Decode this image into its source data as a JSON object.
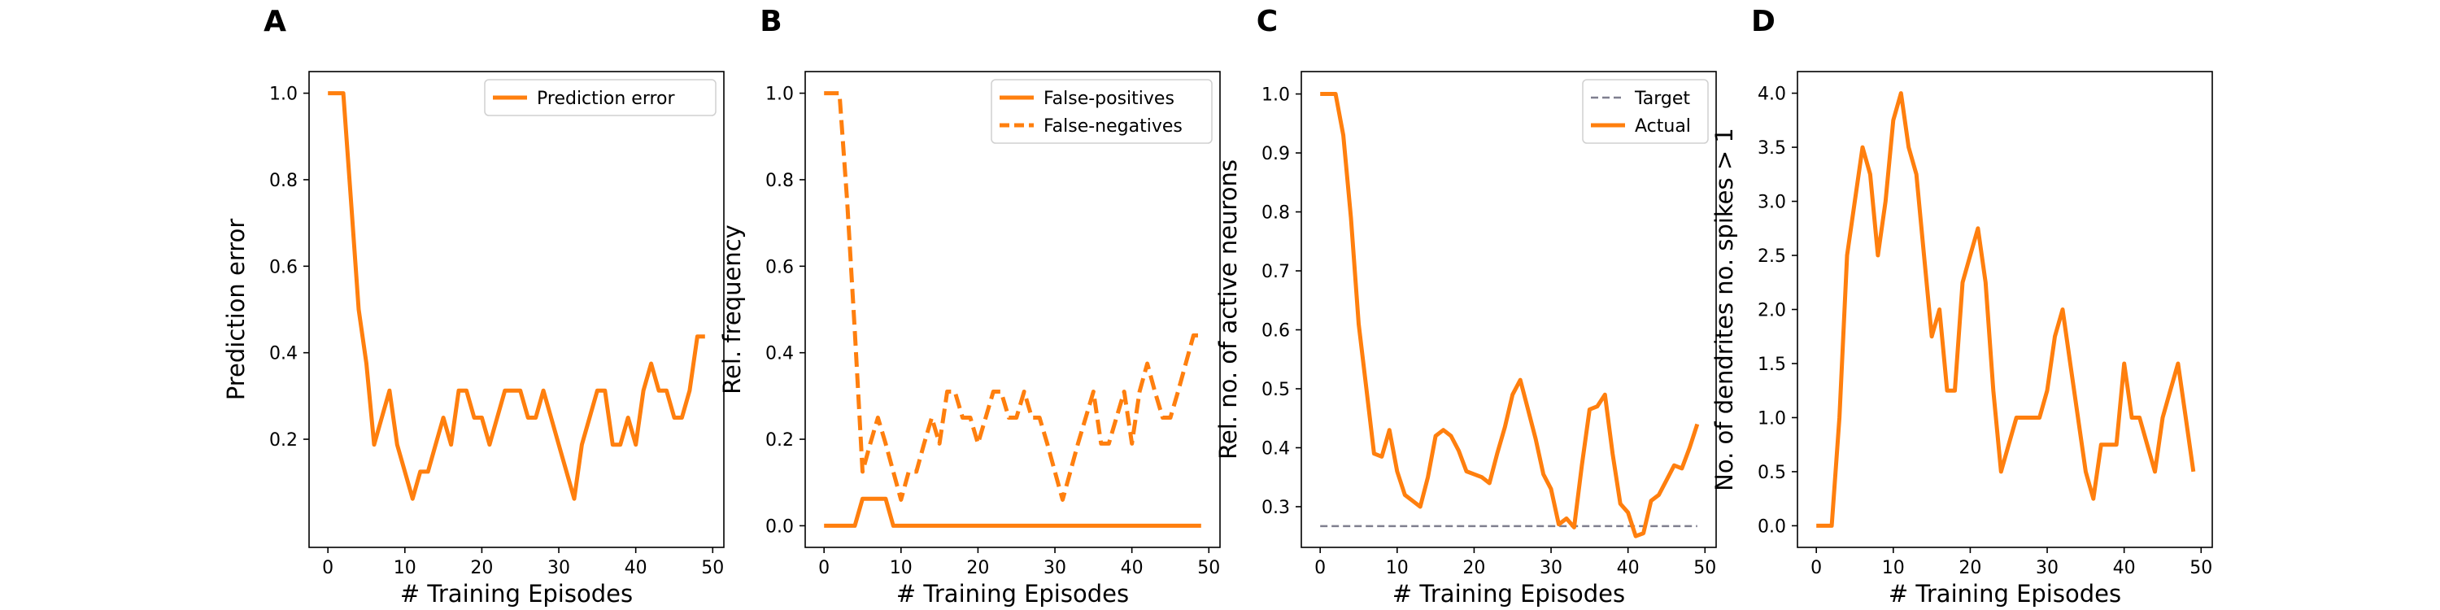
{
  "colors": {
    "orange": "#ff7f0e",
    "target_gray": "#7f7f8f",
    "axis": "#000000"
  },
  "chart_data": [
    {
      "panel": "A",
      "type": "line",
      "xlabel": "# Training Episodes",
      "ylabel": "Prediction error",
      "xlim": [
        -2.45,
        51.45
      ],
      "ylim": [
        -0.05,
        1.05
      ],
      "xticks": [
        0,
        10,
        20,
        30,
        40,
        50
      ],
      "xtick_labels": [
        "0",
        "10",
        "20",
        "30",
        "40",
        "50"
      ],
      "yticks": [
        0.2,
        0.4,
        0.6,
        0.8,
        1.0
      ],
      "ytick_labels": [
        "0.2",
        "0.4",
        "0.6",
        "0.8",
        "1.0"
      ],
      "legend": "top-right",
      "series": [
        {
          "name": "Prediction error",
          "style": "solid",
          "x": [
            0,
            1,
            2,
            3,
            4,
            5,
            6,
            7,
            8,
            9,
            10,
            11,
            12,
            13,
            14,
            15,
            16,
            17,
            18,
            19,
            20,
            21,
            22,
            23,
            24,
            25,
            26,
            27,
            28,
            29,
            30,
            31,
            32,
            33,
            34,
            35,
            36,
            37,
            38,
            39,
            40,
            41,
            42,
            43,
            44,
            45,
            46,
            47,
            48,
            49
          ],
          "y": [
            1.0,
            1.0,
            1.0,
            0.75,
            0.5,
            0.375,
            0.1875,
            0.25,
            0.3125,
            0.1875,
            0.125,
            0.0625,
            0.125,
            0.125,
            0.1875,
            0.25,
            0.1875,
            0.3125,
            0.3125,
            0.25,
            0.25,
            0.1875,
            0.25,
            0.3125,
            0.3125,
            0.3125,
            0.25,
            0.25,
            0.3125,
            0.25,
            0.1875,
            0.125,
            0.0625,
            0.1875,
            0.25,
            0.3125,
            0.3125,
            0.1875,
            0.1875,
            0.25,
            0.1875,
            0.3125,
            0.375,
            0.3125,
            0.3125,
            0.25,
            0.25,
            0.3125,
            0.4375,
            0.4375
          ]
        }
      ]
    },
    {
      "panel": "B",
      "type": "line",
      "xlabel": "# Training Episodes",
      "ylabel": "Rel. frequency",
      "xlim": [
        -2.45,
        51.45
      ],
      "ylim": [
        -0.05,
        1.05
      ],
      "xticks": [
        0,
        10,
        20,
        30,
        40,
        50
      ],
      "xtick_labels": [
        "0",
        "10",
        "20",
        "30",
        "40",
        "50"
      ],
      "yticks": [
        0.0,
        0.2,
        0.4,
        0.6,
        0.8,
        1.0
      ],
      "ytick_labels": [
        "0.0",
        "0.2",
        "0.4",
        "0.6",
        "0.8",
        "1.0"
      ],
      "legend": "top-right",
      "series": [
        {
          "name": "False-positives",
          "style": "solid",
          "x": [
            0,
            1,
            2,
            3,
            4,
            5,
            6,
            7,
            8,
            9,
            10,
            11,
            12,
            13,
            14,
            15,
            16,
            17,
            18,
            19,
            20,
            21,
            22,
            23,
            24,
            25,
            26,
            27,
            28,
            29,
            30,
            31,
            32,
            33,
            34,
            35,
            36,
            37,
            38,
            39,
            40,
            41,
            42,
            43,
            44,
            45,
            46,
            47,
            48,
            49
          ],
          "y": [
            0,
            0,
            0,
            0,
            0,
            0.0625,
            0.0625,
            0.0625,
            0.0625,
            0,
            0,
            0,
            0,
            0,
            0,
            0,
            0,
            0,
            0,
            0,
            0,
            0,
            0,
            0,
            0,
            0,
            0,
            0,
            0,
            0,
            0,
            0,
            0,
            0,
            0,
            0,
            0,
            0,
            0,
            0,
            0,
            0,
            0,
            0,
            0,
            0,
            0,
            0,
            0,
            0
          ]
        },
        {
          "name": "False-negatives",
          "style": "dashed",
          "x": [
            0,
            1,
            2,
            3,
            4,
            5,
            6,
            7,
            8,
            9,
            10,
            11,
            12,
            13,
            14,
            15,
            16,
            17,
            18,
            19,
            20,
            21,
            22,
            23,
            24,
            25,
            26,
            27,
            28,
            29,
            30,
            31,
            32,
            33,
            34,
            35,
            36,
            37,
            38,
            39,
            40,
            41,
            42,
            43,
            44,
            45,
            46,
            47,
            48,
            49
          ],
          "y": [
            1.0,
            1.0,
            1.0,
            0.75,
            0.45,
            0.125,
            0.19,
            0.25,
            0.19,
            0.125,
            0.06,
            0.125,
            0.125,
            0.19,
            0.25,
            0.19,
            0.31,
            0.31,
            0.25,
            0.25,
            0.19,
            0.25,
            0.31,
            0.31,
            0.25,
            0.25,
            0.31,
            0.25,
            0.25,
            0.19,
            0.125,
            0.06,
            0.125,
            0.19,
            0.25,
            0.31,
            0.19,
            0.19,
            0.25,
            0.31,
            0.19,
            0.31,
            0.375,
            0.31,
            0.25,
            0.25,
            0.31,
            0.375,
            0.44,
            0.44
          ]
        }
      ]
    },
    {
      "panel": "C",
      "type": "line",
      "xlabel": "# Training Episodes",
      "ylabel": "Rel. no. of active neurons",
      "xlim": [
        -2.45,
        51.45
      ],
      "ylim": [
        0.231,
        1.038
      ],
      "xticks": [
        0,
        10,
        20,
        30,
        40,
        50
      ],
      "xtick_labels": [
        "0",
        "10",
        "20",
        "30",
        "40",
        "50"
      ],
      "yticks": [
        0.3,
        0.4,
        0.5,
        0.6,
        0.7,
        0.8,
        0.9,
        1.0
      ],
      "ytick_labels": [
        "0.3",
        "0.4",
        "0.5",
        "0.6",
        "0.7",
        "0.8",
        "0.9",
        "1.0"
      ],
      "legend": "top-right",
      "series": [
        {
          "name": "Target",
          "style": "dashed-gray",
          "x": [
            0,
            49
          ],
          "y": [
            0.267,
            0.267
          ]
        },
        {
          "name": "Actual",
          "style": "solid",
          "x": [
            0,
            1,
            2,
            3,
            4,
            5,
            6,
            7,
            8,
            9,
            10,
            11,
            12,
            13,
            14,
            15,
            16,
            17,
            18,
            19,
            20,
            21,
            22,
            23,
            24,
            25,
            26,
            27,
            28,
            29,
            30,
            31,
            32,
            33,
            34,
            35,
            36,
            37,
            38,
            39,
            40,
            41,
            42,
            43,
            44,
            45,
            46,
            47,
            48,
            49
          ],
          "y": [
            1.0,
            1.0,
            1.0,
            0.93,
            0.79,
            0.61,
            0.5,
            0.39,
            0.385,
            0.43,
            0.36,
            0.32,
            0.31,
            0.3,
            0.35,
            0.42,
            0.43,
            0.42,
            0.395,
            0.36,
            0.355,
            0.35,
            0.34,
            0.39,
            0.435,
            0.49,
            0.515,
            0.465,
            0.415,
            0.355,
            0.33,
            0.27,
            0.28,
            0.265,
            0.37,
            0.465,
            0.47,
            0.49,
            0.39,
            0.305,
            0.29,
            0.25,
            0.255,
            0.31,
            0.32,
            0.345,
            0.37,
            0.365,
            0.4,
            0.44
          ]
        }
      ]
    },
    {
      "panel": "D",
      "type": "line",
      "xlabel": "# Training Episodes",
      "ylabel": "No. of dendrites no. spikes > 1",
      "xlim": [
        -2.45,
        51.45
      ],
      "ylim": [
        -0.2,
        4.2
      ],
      "xticks": [
        0,
        10,
        20,
        30,
        40,
        50
      ],
      "xtick_labels": [
        "0",
        "10",
        "20",
        "30",
        "40",
        "50"
      ],
      "yticks": [
        0.0,
        0.5,
        1.0,
        1.5,
        2.0,
        2.5,
        3.0,
        3.5,
        4.0
      ],
      "ytick_labels": [
        "0.0",
        "0.5",
        "1.0",
        "1.5",
        "2.0",
        "2.5",
        "3.0",
        "3.5",
        "4.0"
      ],
      "legend": "none",
      "series": [
        {
          "style": "solid",
          "x": [
            0,
            1,
            2,
            3,
            4,
            5,
            6,
            7,
            8,
            9,
            10,
            11,
            12,
            13,
            14,
            15,
            16,
            17,
            18,
            19,
            20,
            21,
            22,
            23,
            24,
            25,
            26,
            27,
            28,
            29,
            30,
            31,
            32,
            33,
            34,
            35,
            36,
            37,
            38,
            39,
            40,
            41,
            42,
            43,
            44,
            45,
            46,
            47,
            48,
            49
          ],
          "y": [
            0,
            0,
            0,
            1.0,
            2.5,
            3.0,
            3.5,
            3.25,
            2.5,
            3.0,
            3.75,
            4.0,
            3.5,
            3.25,
            2.5,
            1.75,
            2.0,
            1.25,
            1.25,
            2.25,
            2.5,
            2.75,
            2.25,
            1.25,
            0.5,
            0.75,
            1.0,
            1.0,
            1.0,
            1.0,
            1.25,
            1.75,
            2.0,
            1.5,
            1.0,
            0.5,
            0.25,
            0.75,
            0.75,
            0.75,
            1.5,
            1.0,
            1.0,
            0.75,
            0.5,
            1.0,
            1.25,
            1.5,
            1.0,
            0.5
          ]
        }
      ]
    }
  ]
}
